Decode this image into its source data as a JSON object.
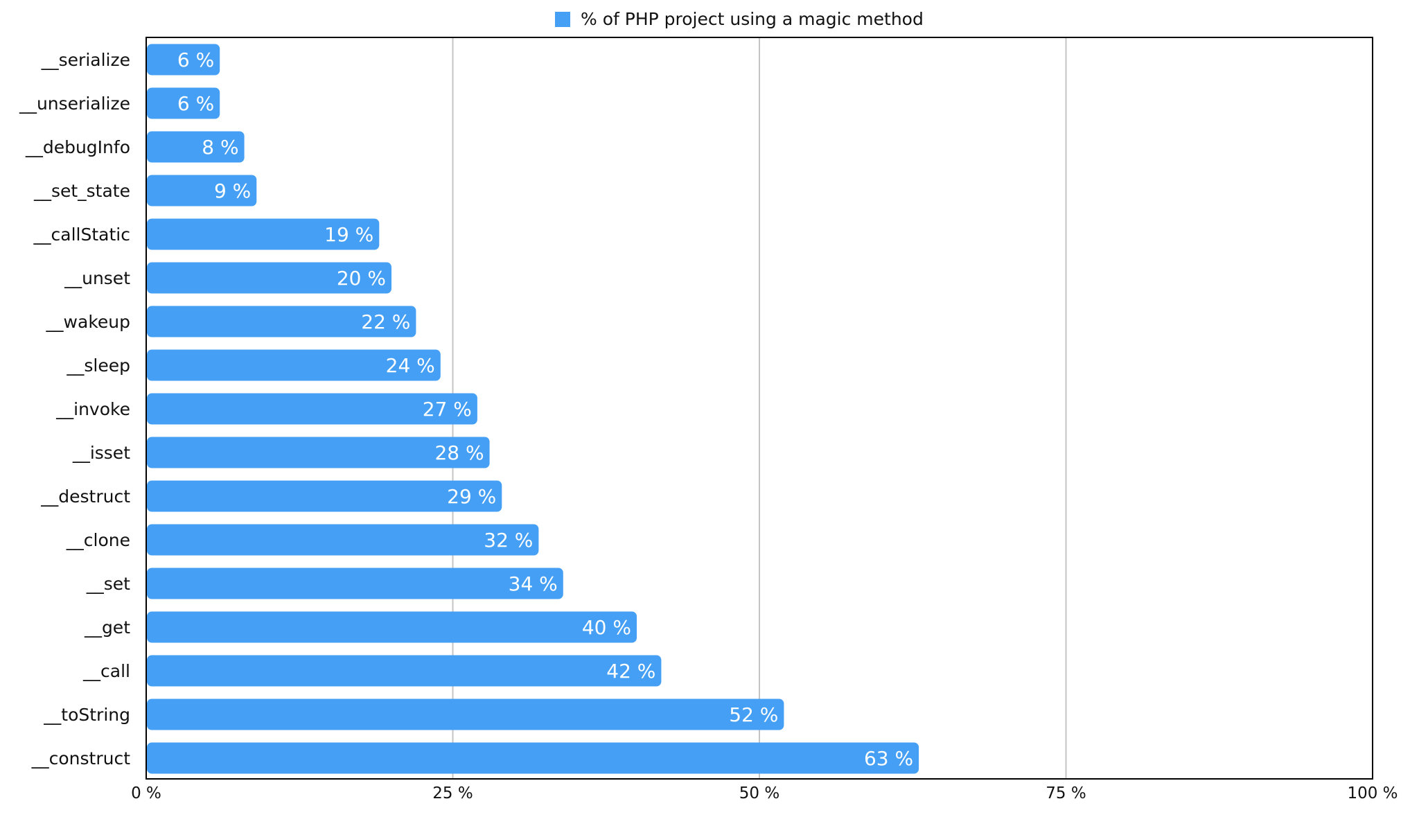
{
  "chart_data": {
    "type": "bar",
    "orientation": "horizontal",
    "categories": [
      "__serialize",
      "__unserialize",
      "__debugInfo",
      "__set_state",
      "__callStatic",
      "__unset",
      "__wakeup",
      "__sleep",
      "__invoke",
      "__isset",
      "__destruct",
      "__clone",
      "__set",
      "__get",
      "__call",
      "__toString",
      "__construct"
    ],
    "series": [
      {
        "name": "% of PHP project using a magic method",
        "color": "#459ff5",
        "values": [
          6,
          6,
          8,
          9,
          19,
          20,
          22,
          24,
          27,
          28,
          29,
          32,
          34,
          40,
          42,
          52,
          63
        ]
      }
    ],
    "value_suffix": " %",
    "xlim": [
      0,
      100
    ],
    "xticks": [
      0,
      25,
      50,
      75,
      100
    ],
    "xtick_labels": [
      "0 %",
      "25 %",
      "50 %",
      "75 %",
      "100 %"
    ],
    "grid": "vertical",
    "legend_position": "top-center",
    "title": "",
    "xlabel": "",
    "ylabel": ""
  }
}
